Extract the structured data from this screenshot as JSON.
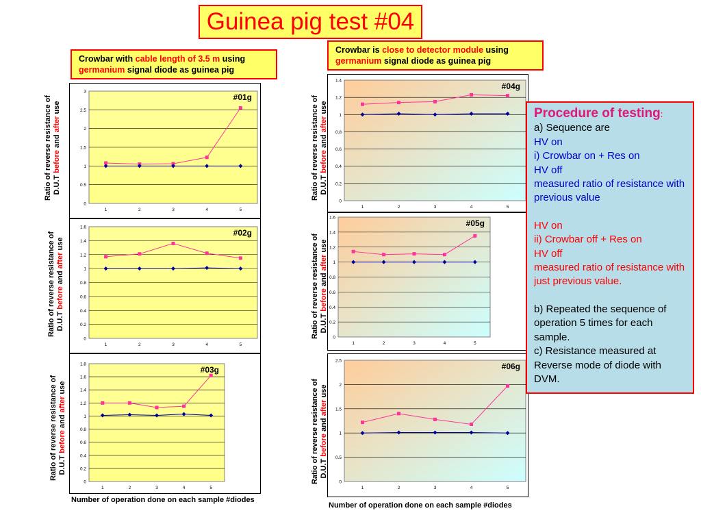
{
  "title": "Guinea  pig test #04",
  "left_caption": {
    "p1": "Crowbar with ",
    "p2": "cable length of  3.5 m",
    "p3": " using",
    "p4": "germanium",
    "p5": " signal diode as guinea pig"
  },
  "right_caption": {
    "p1": "Crowbar is ",
    "p2": "close to detector module",
    "p3": "  using",
    "p4": "germanium",
    "p5": " signal diode as guinea pig"
  },
  "y_axis_label": {
    "line1": "Ratio of reverse resistance of",
    "line2_a": "D.U.T ",
    "line2_b": "before",
    "line2_c": " and ",
    "line2_d": "after",
    "line2_e": " use"
  },
  "x_axis_label": "Number of operation done on each sample #diodes",
  "procedure": {
    "title": "Procedure of testing",
    "title_colon": ":",
    "l1": "a) Sequence are",
    "l2": "HV on",
    "l3": "i) Crowbar on + Res on",
    "l4": "HV off",
    "l5": "measured ratio of resistance with previous value",
    "l6": "HV on",
    "l7": "ii) Crowbar off + Res on",
    "l8": "HV off",
    "l9": "measured ratio of resistance with just previous value.",
    "l10": "b) Repeated the sequence of operation 5 times for each sample.",
    "l11": "c) Resistance measured at Reverse mode of diode with DVM."
  },
  "colors": {
    "ratio_series": "#ff3399",
    "reference_series": "#000099",
    "plot_bg_left": "#ffff99",
    "plot_bg_left_grad": "#ccff99",
    "plot_bg_right_a": "#ffcc99",
    "plot_bg_right_b": "#ccffff"
  },
  "chart_data": [
    {
      "type": "line",
      "label": "#01g",
      "x": [
        1,
        2,
        3,
        4,
        5
      ],
      "ylim": [
        0,
        3
      ],
      "yticks": [
        "0",
        "0.5",
        "1",
        "1.5",
        "2",
        "2.5",
        "3"
      ],
      "series": [
        {
          "values": [
            1.08,
            1.05,
            1.06,
            1.23,
            2.55
          ]
        },
        {
          "values": [
            1.0,
            1.0,
            1.0,
            1.0,
            1.0
          ]
        }
      ],
      "grid": true
    },
    {
      "type": "line",
      "label": "#02g",
      "x": [
        1,
        2,
        3,
        4,
        5
      ],
      "ylim": [
        0,
        1.6
      ],
      "yticks": [
        "0",
        "0.2",
        "0.4",
        "0.6",
        "0.8",
        "1",
        "1.2",
        "1.4",
        "1.6"
      ],
      "series": [
        {
          "values": [
            1.17,
            1.21,
            1.36,
            1.22,
            1.15
          ]
        },
        {
          "values": [
            1.0,
            1.0,
            1.0,
            1.01,
            1.0
          ]
        }
      ],
      "grid": true
    },
    {
      "type": "line",
      "label": "#03g",
      "x": [
        1,
        2,
        3,
        4,
        5
      ],
      "ylim": [
        0,
        1.8
      ],
      "yticks": [
        "0",
        "0.2",
        "0.4",
        "0.6",
        "0.8",
        "1",
        "1.2",
        "1.4",
        "1.6",
        "1.8"
      ],
      "series": [
        {
          "values": [
            1.2,
            1.2,
            1.13,
            1.15,
            1.62
          ]
        },
        {
          "values": [
            1.01,
            1.02,
            1.01,
            1.03,
            1.01
          ]
        }
      ],
      "grid": true
    },
    {
      "type": "line",
      "label": "#04g",
      "x": [
        1,
        2,
        3,
        4,
        5
      ],
      "ylim": [
        0,
        1.4
      ],
      "yticks": [
        "0",
        "0.2",
        "0.4",
        "0.6",
        "0.8",
        "1",
        "1.2",
        "1.4"
      ],
      "series": [
        {
          "values": [
            1.12,
            1.14,
            1.15,
            1.23,
            1.22
          ]
        },
        {
          "values": [
            1.0,
            1.01,
            1.0,
            1.01,
            1.01
          ]
        }
      ],
      "grid": true
    },
    {
      "type": "line",
      "label": "#05g",
      "x": [
        1,
        2,
        3,
        4,
        5
      ],
      "ylim": [
        0,
        1.6
      ],
      "yticks": [
        "0",
        "0.2",
        "0.4",
        "0.6",
        "0.8",
        "1",
        "1.2",
        "1.4",
        "1.6"
      ],
      "series": [
        {
          "values": [
            1.14,
            1.1,
            1.11,
            1.1,
            1.35
          ]
        },
        {
          "values": [
            1.0,
            1.0,
            1.0,
            1.0,
            1.0
          ]
        }
      ],
      "grid": true
    },
    {
      "type": "line",
      "label": "#06g",
      "x": [
        1,
        2,
        3,
        4,
        5
      ],
      "ylim": [
        0,
        2.5
      ],
      "yticks": [
        "0",
        "0.5",
        "1",
        "1.5",
        "2",
        "2.5"
      ],
      "series": [
        {
          "values": [
            1.22,
            1.4,
            1.28,
            1.18,
            1.97
          ]
        },
        {
          "values": [
            1.0,
            1.01,
            1.01,
            1.01,
            1.0
          ]
        }
      ],
      "grid": true
    }
  ]
}
